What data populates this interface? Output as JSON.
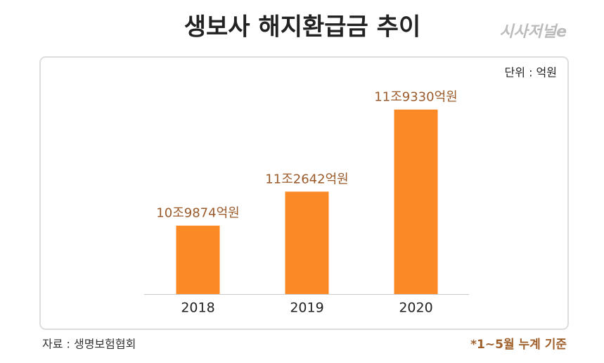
{
  "chart_data": {
    "type": "bar",
    "title": "생보사 해지환급금 추이",
    "logo": "시사저널e",
    "unit_note": "단위 : 억원",
    "categories": [
      "2018",
      "2019",
      "2020"
    ],
    "values": [
      109874,
      112642,
      119330
    ],
    "value_labels": [
      "10조9874억원",
      "11조2642억원",
      "11조9330억원"
    ],
    "color": "#fb8a26",
    "ylim": [
      104300,
      120000
    ],
    "source": "자료 : 생명보험협회",
    "footnote": "*1~5월 누계 기준"
  }
}
